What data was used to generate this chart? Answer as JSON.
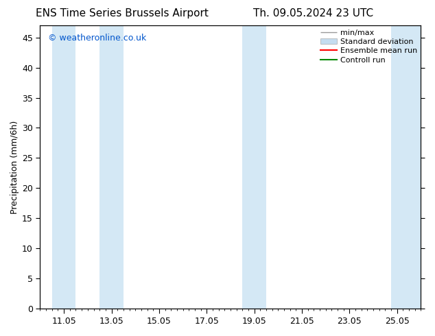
{
  "title_left": "ENS Time Series Brussels Airport",
  "title_right": "Th. 09.05.2024 23 UTC",
  "ylabel": "Precipitation (mm/6h)",
  "ylim": [
    0,
    47
  ],
  "yticks": [
    0,
    5,
    10,
    15,
    20,
    25,
    30,
    35,
    40,
    45
  ],
  "xtick_labels": [
    "11.05",
    "13.05",
    "15.05",
    "17.05",
    "19.05",
    "21.05",
    "23.05",
    "25.05"
  ],
  "xtick_positions": [
    1.0,
    3.0,
    5.0,
    7.0,
    9.0,
    11.0,
    13.0,
    15.0
  ],
  "x_min": 0.0,
  "x_max": 16.0,
  "watermark": "© weatheronline.co.uk",
  "watermark_color": "#0055cc",
  "background_color": "#ffffff",
  "plot_bg_color": "#ffffff",
  "shaded_bands": [
    {
      "x_start": 0.5,
      "x_end": 1.5,
      "color": "#d4e8f5"
    },
    {
      "x_start": 2.5,
      "x_end": 3.5,
      "color": "#d4e8f5"
    },
    {
      "x_start": 8.5,
      "x_end": 9.5,
      "color": "#d4e8f5"
    },
    {
      "x_start": 14.75,
      "x_end": 16.0,
      "color": "#d4e8f5"
    }
  ],
  "legend_items": [
    {
      "label": "min/max",
      "color": "#999999",
      "type": "minmax"
    },
    {
      "label": "Standard deviation",
      "color": "#c5ddf0",
      "type": "patch"
    },
    {
      "label": "Ensemble mean run",
      "color": "#ff0000",
      "type": "line",
      "linewidth": 1.5
    },
    {
      "label": "Controll run",
      "color": "#008800",
      "type": "line",
      "linewidth": 1.5
    }
  ],
  "title_fontsize": 11,
  "axis_label_fontsize": 9,
  "tick_fontsize": 9,
  "legend_fontsize": 8,
  "watermark_fontsize": 9
}
